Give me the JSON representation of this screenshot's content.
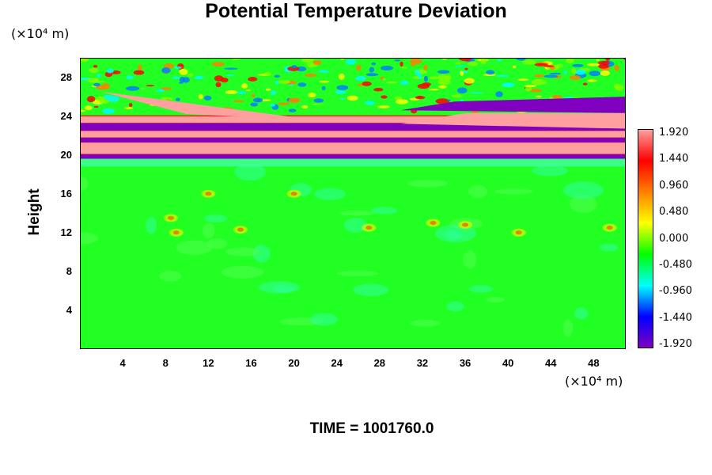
{
  "chart_data": {
    "type": "heatmap",
    "title": "Potential Temperature Deviation",
    "ylabel": "Height",
    "y_unit": "(×10⁴ m)",
    "x_unit": "(×10⁴ m)",
    "xlabel": "",
    "x_ticks": [
      "4",
      "8",
      "12",
      "16",
      "20",
      "24",
      "28",
      "32",
      "36",
      "40",
      "44",
      "48"
    ],
    "y_ticks": [
      "4",
      "8",
      "12",
      "16",
      "20",
      "24",
      "28"
    ],
    "xlim": [
      0,
      51
    ],
    "ylim": [
      0,
      30
    ],
    "colorbar": {
      "labels": [
        "1.920",
        "1.440",
        "0.960",
        "0.480",
        "0.000",
        "-0.480",
        "-0.960",
        "-1.440",
        "-1.920"
      ],
      "range": [
        -1.92,
        1.92
      ],
      "colors": [
        "#ffa0a0",
        "#ff0000",
        "#ff8000",
        "#ffff00",
        "#00ff00",
        "#00ffff",
        "#0000ff",
        "#8000c0"
      ]
    },
    "features": [
      {
        "name": "alternating bands",
        "y_range": [
          19.5,
          26
        ],
        "x_range": [
          0,
          51
        ]
      },
      {
        "name": "near-zero field",
        "y_range": [
          0,
          19
        ],
        "x_range": [
          0,
          51
        ]
      }
    ],
    "footer": "TIME = 1001760.0"
  }
}
